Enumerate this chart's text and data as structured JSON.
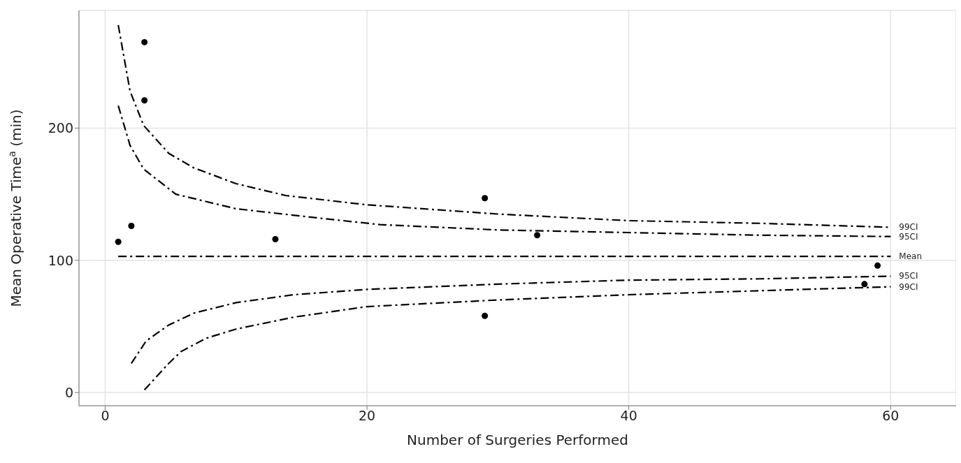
{
  "chart_data": {
    "type": "scatter",
    "xlabel": "Number of Surgeries Performed",
    "ylabel": "Mean Operative Time$^{a}$ (min)",
    "x": [
      1,
      2,
      3,
      3,
      13,
      29,
      29,
      33,
      58,
      59
    ],
    "series": [
      {
        "color": "#000000",
        "marker": "circle",
        "values": [
          114,
          126,
          265,
          221,
          116,
          147,
          58,
          119,
          82,
          96
        ]
      },
      {
        "type": "line",
        "name": "99CI",
        "color": "#000000",
        "line_style": "dashed",
        "x": [
          1,
          1.9,
          2.94,
          4.85,
          6.76,
          10,
          13.8,
          20,
          30,
          40,
          50,
          60
        ],
        "values": [
          278,
          228,
          202,
          181,
          170,
          158,
          149,
          142,
          135,
          130,
          128,
          125
        ]
      },
      {
        "type": "line",
        "name": "95CI",
        "color": "#000000",
        "line_style": "dashed",
        "x": [
          1,
          1.9,
          2.94,
          5.4,
          10,
          16.3,
          21,
          30,
          40,
          50,
          60
        ],
        "values": [
          217,
          187,
          169,
          150,
          139,
          132,
          127,
          123,
          121,
          119,
          118
        ]
      },
      {
        "type": "line",
        "name": "Mean",
        "color": "#000000",
        "line_style": "dashed",
        "x": [
          1,
          60
        ],
        "values": [
          103,
          103
        ]
      },
      {
        "type": "line",
        "name": "95CI",
        "color": "#000000",
        "line_style": "dashed",
        "x": [
          2,
          3.13,
          4.85,
          6.76,
          10,
          14.4,
          20,
          30,
          40,
          50,
          60
        ],
        "values": [
          22,
          39,
          51,
          60,
          68,
          74,
          78,
          82,
          85,
          86,
          88
        ]
      },
      {
        "type": "line",
        "name": "99CI",
        "color": "#000000",
        "line_style": "dashed",
        "x": [
          3,
          4.85,
          5.8,
          7.7,
          10,
          14.4,
          20,
          30,
          40,
          50,
          60
        ],
        "values": [
          2,
          22,
          31,
          41,
          48,
          57,
          65,
          70,
          74,
          77,
          80
        ]
      }
    ],
    "xlim": [
      -2,
      65
    ],
    "xticks": [
      0,
      20,
      40,
      60
    ],
    "ylim": [
      -10,
      289
    ],
    "yticks": [
      0,
      100,
      200
    ],
    "grid": true
  }
}
